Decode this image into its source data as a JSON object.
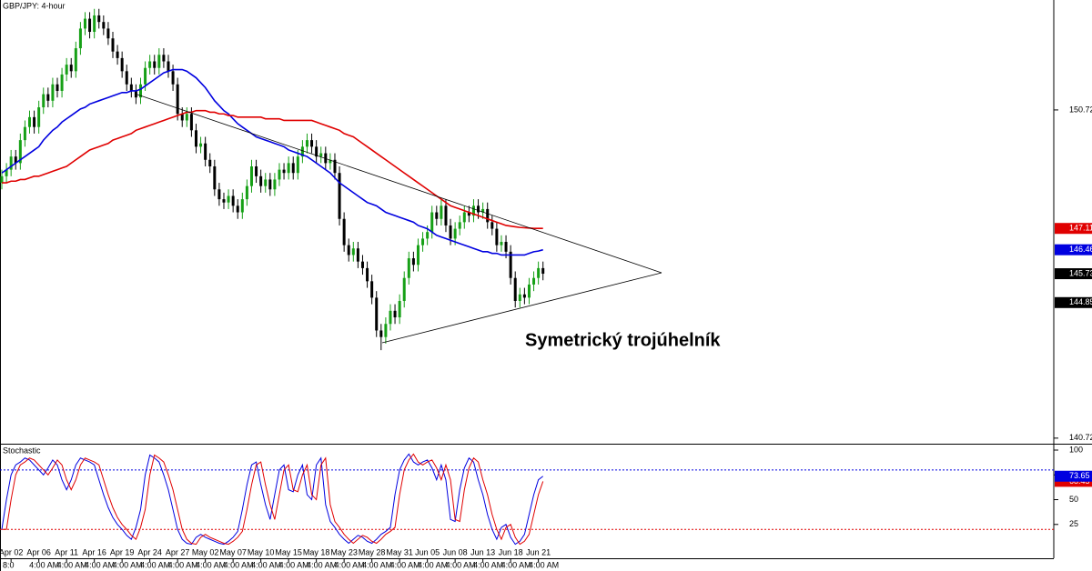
{
  "chart_data": [
    {
      "type": "candlestick",
      "title": "GBP/JPY: 4-hour",
      "categories": [
        null,
        null,
        "Apr 02",
        null,
        null,
        null,
        null,
        null,
        "Apr 06",
        null,
        null,
        null,
        null,
        null,
        "Apr 11",
        null,
        null,
        null,
        null,
        null,
        "Apr 16",
        null,
        null,
        null,
        null,
        null,
        "Apr 19",
        null,
        null,
        null,
        null,
        null,
        "Apr 24",
        null,
        null,
        null,
        null,
        null,
        "Apr 27",
        null,
        null,
        null,
        null,
        null,
        "May 02",
        null,
        null,
        null,
        null,
        null,
        "May 07",
        null,
        null,
        null,
        null,
        null,
        "May 10",
        null,
        null,
        null,
        null,
        null,
        "May 15",
        null,
        null,
        null,
        null,
        null,
        "May 18",
        null,
        null,
        null,
        null,
        null,
        "May 23",
        null,
        null,
        null,
        null,
        null,
        "May 28",
        null,
        null,
        null,
        null,
        null,
        "May 31",
        null,
        null,
        null,
        null,
        null,
        "Jun 05",
        null,
        null,
        null,
        null,
        null,
        "Jun 08",
        null,
        null,
        null,
        null,
        null,
        "Jun 13",
        null,
        null,
        null,
        null,
        null,
        "Jun 18",
        null,
        null,
        null,
        null,
        null,
        "Jun 21",
        null
      ],
      "time_labels": [
        "8:0",
        "4:00 AM",
        "4:00 AM",
        "4:00 AM",
        "4:00 AM",
        "4:00 AM",
        "4:00 AM",
        "4:00 AM",
        "4:00 AM",
        "4:00 AM",
        "4:00 AM",
        "4:00 AM",
        "4:00 AM",
        "4:00 AM",
        "4:00 AM",
        "4:00 AM",
        "4:00 AM",
        "4:00 AM",
        "4:00 AM",
        "4:00 AM"
      ],
      "open": [
        148.5,
        148.7,
        148.9,
        149.3,
        149.1,
        149.8,
        150.2,
        150.5,
        150.2,
        150.8,
        151.2,
        151.0,
        151.5,
        151.3,
        151.8,
        152.1,
        151.9,
        152.6,
        153.2,
        153.5,
        153.1,
        153.6,
        153.4,
        153.2,
        152.9,
        152.5,
        152.3,
        151.9,
        151.5,
        151.3,
        151.1,
        151.5,
        152.0,
        152.2,
        152.0,
        152.4,
        152.2,
        151.9,
        151.5,
        150.6,
        150.4,
        150.6,
        150.1,
        149.6,
        149.7,
        149.2,
        149.0,
        148.3,
        148.0,
        147.9,
        148.1,
        147.8,
        147.6,
        148.0,
        148.4,
        149.0,
        148.7,
        148.4,
        148.6,
        148.3,
        148.6,
        148.9,
        148.8,
        149.1,
        148.8,
        149.3,
        149.6,
        149.8,
        149.6,
        149.3,
        149.4,
        149.1,
        149.2,
        148.8,
        147.4,
        146.6,
        146.3,
        146.5,
        146.1,
        145.9,
        145.5,
        145.0,
        144.0,
        143.8,
        144.2,
        144.6,
        144.4,
        144.9,
        145.6,
        146.2,
        146.0,
        146.6,
        146.8,
        147.0,
        147.6,
        147.4,
        147.8,
        147.2,
        146.8,
        147.1,
        147.3,
        147.6,
        147.5,
        147.8,
        147.6,
        147.7,
        147.3,
        147.1,
        146.6,
        146.7,
        146.4,
        145.6,
        144.9,
        145.1,
        145.0,
        145.4,
        145.6,
        145.9
      ],
      "high": [
        148.9,
        149.1,
        149.5,
        149.5,
        150.0,
        150.4,
        150.7,
        150.7,
        151.0,
        151.4,
        151.4,
        151.7,
        151.7,
        152.0,
        152.3,
        152.3,
        152.8,
        153.4,
        153.7,
        153.7,
        153.8,
        153.8,
        153.6,
        153.4,
        153.1,
        152.7,
        152.5,
        152.1,
        151.7,
        151.5,
        151.7,
        152.2,
        152.4,
        152.4,
        152.6,
        152.6,
        152.4,
        152.1,
        151.7,
        150.8,
        150.8,
        150.8,
        150.3,
        149.9,
        149.9,
        149.4,
        149.2,
        148.5,
        148.2,
        148.3,
        148.3,
        148.0,
        148.2,
        148.6,
        149.2,
        149.2,
        148.9,
        148.8,
        148.8,
        148.8,
        149.1,
        149.1,
        149.3,
        149.3,
        149.5,
        149.8,
        150.0,
        150.0,
        149.8,
        149.6,
        149.6,
        149.4,
        149.4,
        149.0,
        147.6,
        146.8,
        146.7,
        146.7,
        146.3,
        146.1,
        145.7,
        145.2,
        144.2,
        144.4,
        144.8,
        144.8,
        145.1,
        145.8,
        146.4,
        146.4,
        146.8,
        147.0,
        147.2,
        147.8,
        147.8,
        148.0,
        148.0,
        147.4,
        147.3,
        147.5,
        147.8,
        147.8,
        148.0,
        148.0,
        147.9,
        147.9,
        147.5,
        147.3,
        146.9,
        146.9,
        146.6,
        145.8,
        145.3,
        145.3,
        145.6,
        145.8,
        146.1,
        146.1
      ],
      "low": [
        148.3,
        148.5,
        148.7,
        148.9,
        148.9,
        149.6,
        150.0,
        150.0,
        150.0,
        150.6,
        150.8,
        150.8,
        151.1,
        151.1,
        151.6,
        151.7,
        151.7,
        152.4,
        153.0,
        152.9,
        152.9,
        153.2,
        153.0,
        152.7,
        152.3,
        152.1,
        151.7,
        151.3,
        151.1,
        150.9,
        150.9,
        151.3,
        151.8,
        151.8,
        151.8,
        152.0,
        151.7,
        151.3,
        150.4,
        150.2,
        150.2,
        149.9,
        149.4,
        149.4,
        149.0,
        148.8,
        148.1,
        147.8,
        147.7,
        147.7,
        147.6,
        147.4,
        147.4,
        147.8,
        148.2,
        148.5,
        148.2,
        148.2,
        148.1,
        148.1,
        148.4,
        148.6,
        148.6,
        148.6,
        148.6,
        149.1,
        149.4,
        149.4,
        149.1,
        149.1,
        148.9,
        148.9,
        148.6,
        147.2,
        146.4,
        146.1,
        146.1,
        145.9,
        145.7,
        145.3,
        144.8,
        143.8,
        143.4,
        143.6,
        144.0,
        144.2,
        144.2,
        144.7,
        145.4,
        145.8,
        145.8,
        146.4,
        146.6,
        146.8,
        147.2,
        147.2,
        147.0,
        146.6,
        146.6,
        146.9,
        147.1,
        147.3,
        147.3,
        147.4,
        147.4,
        147.1,
        146.9,
        146.4,
        146.4,
        146.2,
        145.4,
        144.7,
        144.7,
        144.8,
        144.8,
        145.2,
        145.4,
        145.53
      ],
      "close": [
        148.7,
        148.9,
        149.3,
        149.1,
        149.8,
        150.2,
        150.5,
        150.2,
        150.8,
        151.2,
        151.0,
        151.5,
        151.3,
        151.8,
        152.1,
        151.9,
        152.6,
        153.2,
        153.5,
        153.1,
        153.6,
        153.4,
        153.2,
        152.9,
        152.5,
        152.3,
        151.9,
        151.5,
        151.3,
        151.1,
        151.5,
        152.0,
        152.2,
        152.0,
        152.4,
        152.2,
        151.9,
        151.5,
        150.6,
        150.4,
        150.6,
        150.1,
        149.6,
        149.7,
        149.2,
        149.0,
        148.3,
        148.0,
        147.9,
        148.1,
        147.8,
        147.6,
        148.0,
        148.4,
        149.0,
        148.7,
        148.4,
        148.6,
        148.3,
        148.6,
        148.9,
        148.8,
        149.1,
        148.8,
        149.3,
        149.6,
        149.8,
        149.6,
        149.3,
        149.4,
        149.1,
        149.2,
        148.8,
        147.4,
        146.6,
        146.3,
        146.5,
        146.1,
        145.9,
        145.5,
        145.0,
        144.0,
        143.8,
        144.2,
        144.6,
        144.4,
        144.9,
        145.6,
        146.2,
        146.0,
        146.6,
        146.8,
        147.0,
        147.6,
        147.4,
        147.8,
        147.2,
        146.8,
        147.1,
        147.3,
        147.6,
        147.5,
        147.8,
        147.6,
        147.7,
        147.3,
        147.1,
        146.6,
        146.7,
        146.4,
        145.6,
        144.9,
        145.1,
        145.0,
        145.4,
        145.6,
        145.9,
        145.73
      ],
      "up_color": "#16a016",
      "down_color": "#000000",
      "series": [
        {
          "color": "#0000e0",
          "values": [
            148.8,
            148.9,
            149.0,
            149.1,
            149.2,
            149.3,
            149.4,
            149.5,
            149.6,
            149.8,
            149.95,
            150.1,
            150.2,
            150.35,
            150.45,
            150.55,
            150.65,
            150.75,
            150.8,
            150.9,
            150.95,
            151.0,
            151.05,
            151.1,
            151.15,
            151.2,
            151.25,
            151.25,
            151.3,
            151.3,
            151.35,
            151.45,
            151.55,
            151.65,
            151.75,
            151.85,
            151.9,
            151.95,
            151.95,
            151.95,
            151.9,
            151.8,
            151.7,
            151.55,
            151.4,
            151.2,
            151.0,
            150.85,
            150.7,
            150.6,
            150.45,
            150.3,
            150.2,
            150.1,
            150.0,
            149.9,
            149.85,
            149.8,
            149.75,
            149.7,
            149.65,
            149.6,
            149.5,
            149.45,
            149.4,
            149.35,
            149.3,
            149.2,
            149.1,
            149.0,
            148.9,
            148.8,
            148.65,
            148.5,
            148.4,
            148.3,
            148.2,
            148.1,
            148.0,
            147.9,
            147.85,
            147.8,
            147.7,
            147.6,
            147.55,
            147.5,
            147.45,
            147.4,
            147.35,
            147.3,
            147.2,
            147.15,
            147.1,
            147.0,
            146.9,
            146.85,
            146.8,
            146.75,
            146.7,
            146.65,
            146.6,
            146.55,
            146.5,
            146.45,
            146.4,
            146.4,
            146.35,
            146.35,
            146.3,
            146.3,
            146.3,
            146.3,
            146.3,
            146.3,
            146.35,
            146.4,
            146.42,
            146.46
          ]
        },
        {
          "color": "#e00000",
          "values": [
            148.5,
            148.5,
            148.55,
            148.55,
            148.6,
            148.6,
            148.65,
            148.7,
            148.7,
            148.75,
            148.8,
            148.85,
            148.9,
            148.95,
            149.0,
            149.1,
            149.2,
            149.3,
            149.4,
            149.5,
            149.55,
            149.6,
            149.65,
            149.7,
            149.8,
            149.85,
            149.9,
            149.95,
            150.0,
            150.1,
            150.15,
            150.2,
            150.25,
            150.3,
            150.35,
            150.4,
            150.45,
            150.5,
            150.55,
            150.6,
            150.65,
            150.65,
            150.7,
            150.7,
            150.7,
            150.65,
            150.65,
            150.6,
            150.6,
            150.55,
            150.55,
            150.5,
            150.5,
            150.5,
            150.5,
            150.5,
            150.5,
            150.45,
            150.45,
            150.45,
            150.45,
            150.4,
            150.4,
            150.4,
            150.4,
            150.4,
            150.4,
            150.4,
            150.35,
            150.3,
            150.25,
            150.2,
            150.15,
            150.1,
            150.0,
            149.95,
            149.9,
            149.8,
            149.7,
            149.6,
            149.5,
            149.4,
            149.3,
            149.2,
            149.1,
            149.0,
            148.9,
            148.8,
            148.7,
            148.6,
            148.5,
            148.4,
            148.3,
            148.2,
            148.1,
            148.0,
            147.9,
            147.8,
            147.75,
            147.7,
            147.65,
            147.6,
            147.55,
            147.5,
            147.45,
            147.4,
            147.35,
            147.3,
            147.25,
            147.2,
            147.18,
            147.16,
            147.14,
            147.13,
            147.12,
            147.11,
            147.11,
            147.11
          ]
        }
      ],
      "ylim": [
        140.55,
        154.07
      ],
      "yticks": [
        150.72,
        140.72
      ],
      "price_tags": [
        {
          "value": 147.11,
          "color": "#e00000"
        },
        {
          "value": 146.46,
          "color": "#0000e0"
        },
        {
          "value": 145.73,
          "color": "#000000"
        },
        {
          "value": 144.85,
          "color": "#000000"
        }
      ],
      "annotation": "Symetrický trojúhelník"
    },
    {
      "type": "line",
      "title": "Stochastic",
      "series": [
        {
          "color": "#0000e0",
          "values": [
            20,
            50,
            75,
            85,
            88,
            92,
            90,
            85,
            80,
            75,
            82,
            90,
            85,
            70,
            60,
            70,
            85,
            92,
            90,
            88,
            85,
            70,
            55,
            42,
            32,
            25,
            20,
            14,
            10,
            22,
            40,
            75,
            95,
            92,
            88,
            75,
            60,
            40,
            20,
            10,
            6,
            5,
            12,
            15,
            12,
            10,
            8,
            6,
            5,
            8,
            12,
            18,
            40,
            65,
            85,
            88,
            65,
            45,
            30,
            55,
            80,
            85,
            60,
            58,
            75,
            85,
            55,
            50,
            85,
            92,
            45,
            28,
            22,
            15,
            10,
            6,
            10,
            14,
            12,
            8,
            6,
            10,
            15,
            18,
            22,
            55,
            80,
            90,
            96,
            88,
            85,
            88,
            90,
            82,
            70,
            85,
            70,
            30,
            28,
            60,
            82,
            92,
            88,
            70,
            55,
            35,
            20,
            10,
            22,
            25,
            12,
            5,
            8,
            15,
            35,
            55,
            70,
            73.65
          ]
        },
        {
          "color": "#e00000",
          "values": [
            20,
            20,
            50,
            75,
            85,
            88,
            92,
            90,
            85,
            80,
            75,
            82,
            90,
            85,
            70,
            60,
            70,
            85,
            92,
            90,
            88,
            85,
            70,
            55,
            42,
            32,
            25,
            20,
            14,
            10,
            22,
            40,
            75,
            95,
            92,
            88,
            75,
            60,
            40,
            20,
            10,
            6,
            5,
            12,
            15,
            12,
            10,
            8,
            6,
            5,
            8,
            12,
            18,
            40,
            65,
            85,
            88,
            65,
            45,
            30,
            55,
            80,
            85,
            60,
            58,
            75,
            85,
            55,
            50,
            85,
            92,
            45,
            28,
            22,
            15,
            10,
            6,
            10,
            14,
            12,
            8,
            6,
            10,
            15,
            18,
            22,
            55,
            80,
            90,
            96,
            88,
            85,
            88,
            90,
            82,
            70,
            85,
            70,
            30,
            28,
            60,
            82,
            92,
            88,
            70,
            55,
            35,
            20,
            10,
            22,
            25,
            12,
            5,
            8,
            15,
            35,
            55,
            68.45
          ]
        }
      ],
      "ylim": [
        -7.3,
        104.6
      ],
      "yticks": [
        100,
        75,
        50,
        25
      ],
      "levels": [
        {
          "value": 80,
          "color": "#0000e0"
        },
        {
          "value": 20,
          "color": "#e00000"
        }
      ],
      "value_tags": [
        {
          "value": 73.65,
          "color": "#0000e0"
        },
        {
          "value": 68.45,
          "color": "#e00000"
        }
      ]
    }
  ]
}
